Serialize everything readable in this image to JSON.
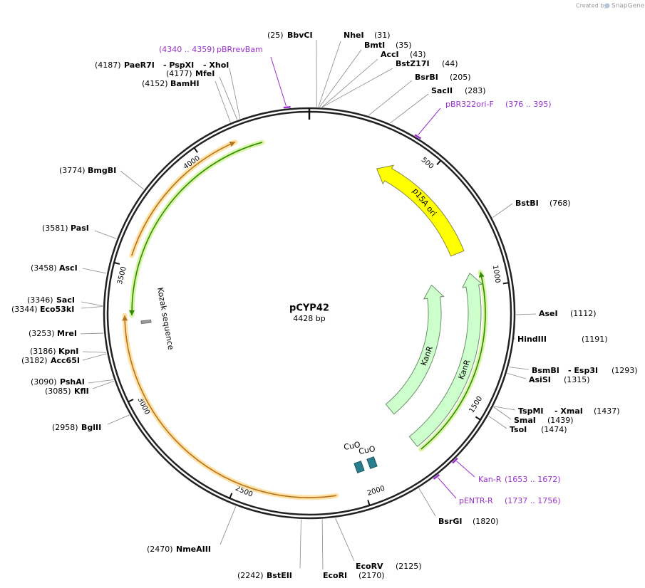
{
  "watermark": {
    "prefix": "Created by",
    "brand": "SnapGene"
  },
  "plasmid": {
    "name": "pCYP42",
    "length": "4428 bp"
  },
  "ticks": [
    500,
    1000,
    1500,
    2000,
    2500,
    3000,
    3500,
    4000
  ],
  "sites": [
    {
      "names": [
        "BbvCI"
      ],
      "position": "(25)"
    },
    {
      "names": [
        "NheI"
      ],
      "position": "(31)"
    },
    {
      "names": [
        "BmtI"
      ],
      "position": "(35)"
    },
    {
      "names": [
        "AccI"
      ],
      "position": "(43)"
    },
    {
      "names": [
        "BstZ17I"
      ],
      "position": "(44)"
    },
    {
      "names": [
        "BsrBI"
      ],
      "position": "(205)"
    },
    {
      "names": [
        "SacII"
      ],
      "position": "(283)"
    },
    {
      "names": [
        "BstBI"
      ],
      "position": "(768)"
    },
    {
      "names": [
        "AseI"
      ],
      "position": "(1112)"
    },
    {
      "names": [
        "HindIII"
      ],
      "position": "(1191)"
    },
    {
      "names": [
        "BsmBI",
        "- Esp3I"
      ],
      "position": "(1293)"
    },
    {
      "names": [
        "AsiSI"
      ],
      "position": "(1315)"
    },
    {
      "names": [
        "TspMI",
        "- XmaI"
      ],
      "position": "(1437)"
    },
    {
      "names": [
        "SmaI"
      ],
      "position": "(1439)"
    },
    {
      "names": [
        "TsoI"
      ],
      "position": "(1474)"
    },
    {
      "names": [
        "BsrGI"
      ],
      "position": "(1820)"
    },
    {
      "names": [
        "EcoRV"
      ],
      "position": "(2125)"
    },
    {
      "names": [
        "EcoRI"
      ],
      "position": "(2170)"
    },
    {
      "names": [
        "BstEII"
      ],
      "position": "(2242)"
    },
    {
      "names": [
        "NmeAIII"
      ],
      "position": "(2470)"
    },
    {
      "names": [
        "BglII"
      ],
      "position": "(2958)"
    },
    {
      "names": [
        "KflI"
      ],
      "position": "(3085)"
    },
    {
      "names": [
        "PshAI"
      ],
      "position": "(3090)"
    },
    {
      "names": [
        "Acc65I"
      ],
      "position": "(3182)"
    },
    {
      "names": [
        "KpnI"
      ],
      "position": "(3186)"
    },
    {
      "names": [
        "MreI"
      ],
      "position": "(3253)"
    },
    {
      "names": [
        "Eco53kI"
      ],
      "position": "(3344)"
    },
    {
      "names": [
        "SacI"
      ],
      "position": "(3346)"
    },
    {
      "names": [
        "AscI"
      ],
      "position": "(3458)"
    },
    {
      "names": [
        "PasI"
      ],
      "position": "(3581)"
    },
    {
      "names": [
        "BmgBI"
      ],
      "position": "(3774)"
    },
    {
      "names": [
        "BamHI"
      ],
      "position": "(4152)"
    },
    {
      "names": [
        "MfeI"
      ],
      "position": "(4177)"
    },
    {
      "names": [
        "PaeR7I",
        "- PspXI",
        "- XhoI"
      ],
      "position": "(4187)"
    }
  ],
  "primers": [
    {
      "name": "pBR322ori-F",
      "range": "(376 .. 395)"
    },
    {
      "name": "Kan-R",
      "range": "(1653 .. 1672)"
    },
    {
      "name": "pENTR-R",
      "range": "(1737 .. 1756)"
    },
    {
      "name": "pBRrevBam",
      "range": "(4340 .. 4359)"
    }
  ],
  "features": [
    {
      "label": "p15A ori"
    },
    {
      "label": "KanR"
    },
    {
      "label": "KanR"
    },
    {
      "label": "Kozak sequence"
    },
    {
      "label": "CuO"
    },
    {
      "label": "CuO"
    }
  ]
}
